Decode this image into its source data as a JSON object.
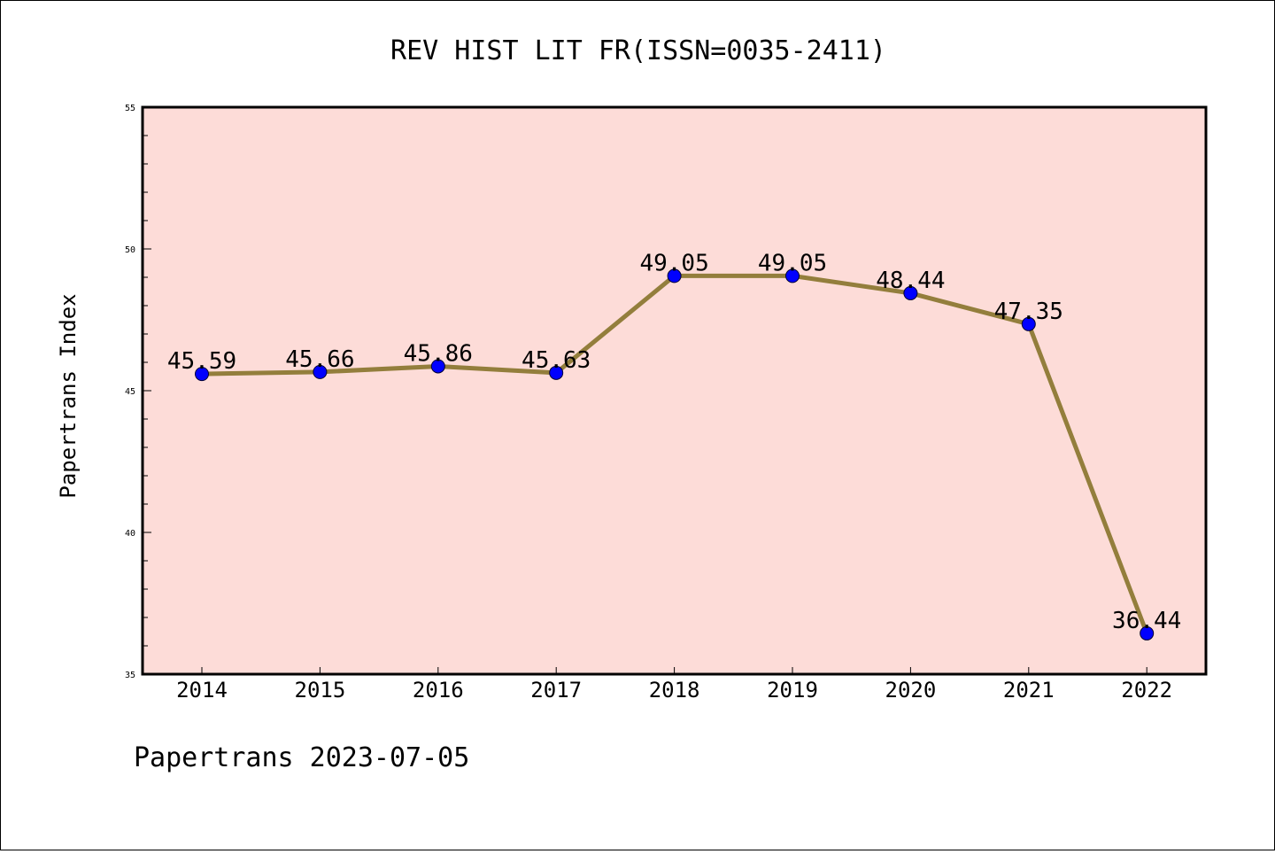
{
  "chart_data": {
    "type": "line",
    "title": "REV HIST LIT FR(ISSN=0035-2411)",
    "xlabel": "",
    "ylabel": "Papertrans Index",
    "categories": [
      "2014",
      "2015",
      "2016",
      "2017",
      "2018",
      "2019",
      "2020",
      "2021",
      "2022"
    ],
    "series": [
      {
        "values": [
          45.59,
          45.66,
          45.86,
          45.63,
          49.05,
          49.05,
          48.44,
          47.35,
          36.44
        ],
        "labels": [
          "45.59",
          "45.66",
          "45.86",
          "45.63",
          "49.05",
          "49.05",
          "48.44",
          "47.35",
          "36.44"
        ]
      }
    ],
    "ylim": [
      35,
      55
    ],
    "yticks": [
      35,
      40,
      45,
      50,
      55
    ],
    "grid": false,
    "legend": "none"
  },
  "footer": "Papertrans 2023-07-05",
  "colors": {
    "plot_background": "#fddcd8",
    "line": "#937e3c",
    "marker": "#0000ff",
    "axis": "#000000"
  }
}
